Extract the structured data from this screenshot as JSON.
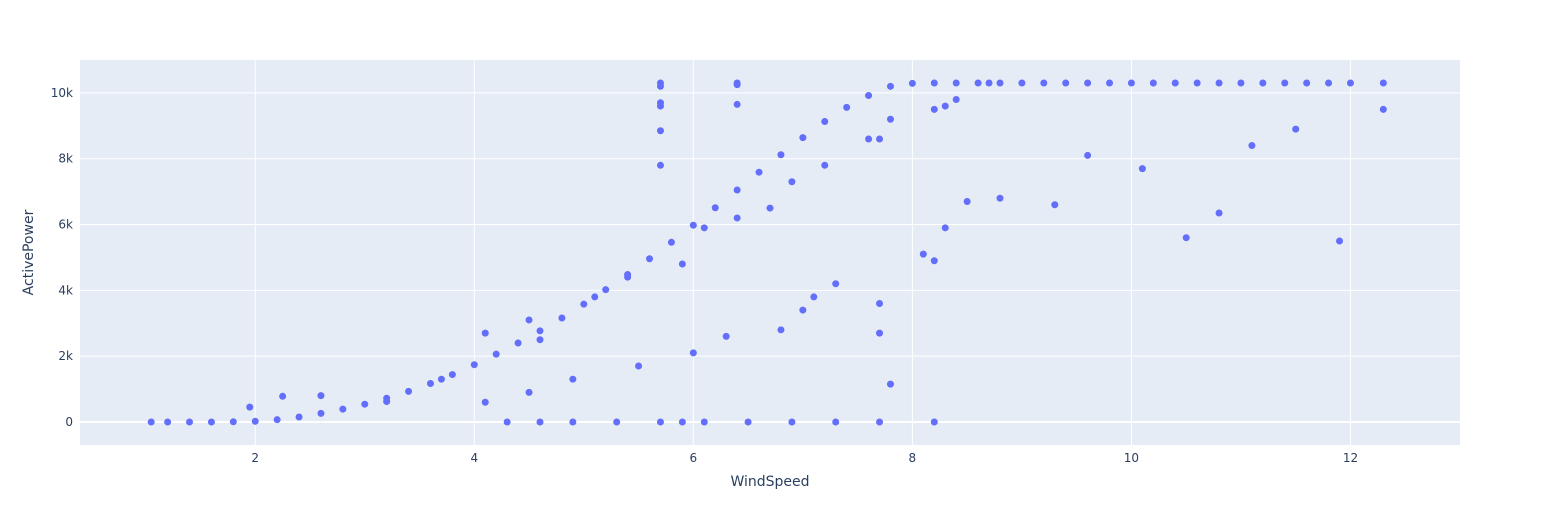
{
  "chart_data": {
    "type": "scatter",
    "title": "",
    "xlabel": "WindSpeed",
    "ylabel": "ActivePower",
    "xlim": [
      0.4,
      13.0
    ],
    "ylim": [
      -700,
      11000
    ],
    "x_ticks": [
      2,
      4,
      6,
      8,
      10,
      12
    ],
    "x_tick_labels": [
      "2",
      "4",
      "6",
      "8",
      "10",
      "12"
    ],
    "y_ticks": [
      0,
      2000,
      4000,
      6000,
      8000,
      10000
    ],
    "y_tick_labels": [
      "0",
      "2k",
      "4k",
      "6k",
      "8k",
      "10k"
    ],
    "grid": true,
    "legend": "none",
    "colors": {
      "plot_background": "#E5ECF6",
      "grid": "#ffffff",
      "marker": "#636EFA",
      "text": "#2a3f5f"
    },
    "series": [
      {
        "name": "",
        "x": [
          1.05,
          1.2,
          1.4,
          1.6,
          1.8,
          2.0,
          2.2,
          2.4,
          2.6,
          2.8,
          3.0,
          3.2,
          3.4,
          3.6,
          3.8,
          4.0,
          4.2,
          4.4,
          4.6,
          4.8,
          5.0,
          5.2,
          5.4,
          5.6,
          5.8,
          6.0,
          6.2,
          6.4,
          6.6,
          6.8,
          7.0,
          7.2,
          7.4,
          7.6,
          7.8,
          8.0,
          8.2,
          8.4,
          8.6,
          8.8,
          9.0,
          9.2,
          9.4,
          9.6,
          9.8,
          10.0,
          10.2,
          10.4,
          10.6,
          10.8,
          11.0,
          11.2,
          11.4,
          11.6,
          11.8,
          12.0,
          12.3,
          1.95,
          2.25,
          2.6,
          3.2,
          3.7,
          4.1,
          4.5,
          4.6,
          5.1,
          5.4,
          5.9,
          6.1,
          6.4,
          6.7,
          6.9,
          7.2,
          7.6,
          7.7,
          7.8,
          8.2,
          8.3,
          8.4,
          8.7,
          5.7,
          5.7,
          5.7,
          5.7,
          5.7,
          5.7,
          6.4,
          6.4,
          6.4,
          4.1,
          4.5,
          4.9,
          5.5,
          6.0,
          6.3,
          6.8,
          7.0,
          7.1,
          7.3,
          7.7,
          7.7,
          7.8,
          8.1,
          8.2,
          8.3,
          8.5,
          8.8,
          9.3,
          9.6,
          10.1,
          10.5,
          10.8,
          11.1,
          11.5,
          11.9,
          12.3,
          4.3,
          4.6,
          4.9,
          5.3,
          5.7,
          5.9,
          6.1,
          6.5,
          6.9,
          7.3,
          7.7,
          8.2
        ],
        "y": [
          0,
          0,
          0,
          0,
          5,
          20,
          70,
          150,
          260,
          390,
          540,
          720,
          930,
          1170,
          1440,
          1740,
          2060,
          2400,
          2770,
          3160,
          3580,
          4020,
          4480,
          4960,
          5460,
          5980,
          6510,
          7050,
          7590,
          8120,
          8640,
          9130,
          9560,
          9920,
          10200,
          10290,
          10300,
          10300,
          10300,
          10300,
          10300,
          10300,
          10300,
          10300,
          10300,
          10300,
          10300,
          10300,
          10300,
          10300,
          10300,
          10300,
          10300,
          10300,
          10300,
          10300,
          10300,
          450,
          780,
          800,
          620,
          1300,
          2700,
          3100,
          2500,
          3800,
          4400,
          4800,
          5900,
          6200,
          6500,
          7300,
          7800,
          8600,
          8600,
          9200,
          9500,
          9600,
          9800,
          10300,
          10300,
          10200,
          9700,
          9600,
          8850,
          7800,
          10300,
          10250,
          9650,
          600,
          900,
          1300,
          1700,
          2100,
          2600,
          2800,
          3400,
          3800,
          4200,
          3600,
          2700,
          1150,
          5100,
          4900,
          5900,
          6700,
          6800,
          6600,
          8100,
          7700,
          5600,
          6350,
          8400,
          8900,
          5500,
          9500,
          0,
          0,
          0,
          0,
          0,
          0,
          0,
          0,
          0,
          0,
          0,
          0
        ]
      }
    ]
  }
}
